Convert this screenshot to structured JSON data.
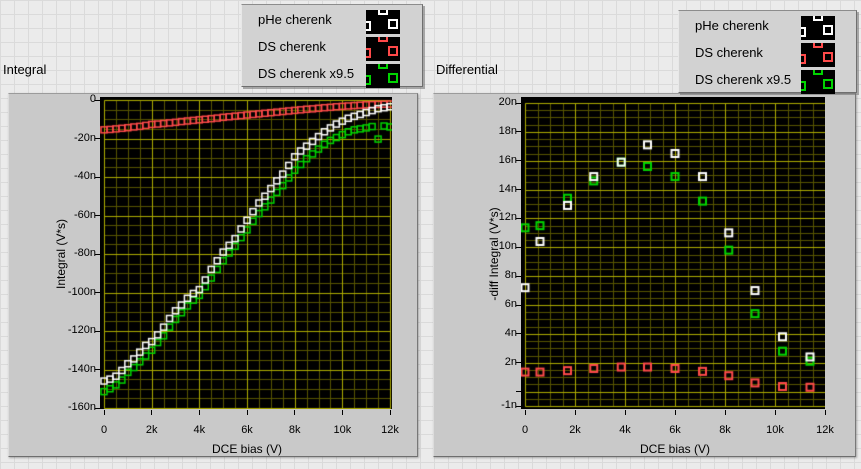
{
  "colors": {
    "page_bg": "#ebebeb",
    "page_grid": "#dadada",
    "panel_bg": "#c9c9c9",
    "plot_bg": "#000000",
    "grid_major": "#aeac00",
    "grid_minor": "#585600",
    "series_white": "#ffffff",
    "series_red": "#ff4a4a",
    "series_green": "#00d400"
  },
  "legend_items": [
    {
      "label": "pHe cherenk",
      "color": "#ffffff"
    },
    {
      "label": "DS cherenk",
      "color": "#ff4a4a"
    },
    {
      "label": "DS cherenk x9.5",
      "color": "#00d400"
    }
  ],
  "chart_data": [
    {
      "type": "scatter",
      "title": "Integral",
      "xlabel": "DCE bias (V)",
      "ylabel": "Integral (V*s)",
      "xlim": [
        0,
        12
      ],
      "ylim": [
        0,
        -160
      ],
      "x_minor_step": 0.5,
      "y_minor_step": 5,
      "x_ticks": [
        {
          "v": 0,
          "label": "0"
        },
        {
          "v": 2,
          "label": "2k"
        },
        {
          "v": 4,
          "label": "4k"
        },
        {
          "v": 6,
          "label": "6k"
        },
        {
          "v": 8,
          "label": "8k"
        },
        {
          "v": 10,
          "label": "10k"
        },
        {
          "v": 12,
          "label": "12k"
        }
      ],
      "y_ticks": [
        {
          "v": 0,
          "label": "0"
        },
        {
          "v": -20,
          "label": "-20n"
        },
        {
          "v": -40,
          "label": "-40n"
        },
        {
          "v": -60,
          "label": "-60n"
        },
        {
          "v": -80,
          "label": "-80n"
        },
        {
          "v": -100,
          "label": "-100n"
        },
        {
          "v": -120,
          "label": "-120n"
        },
        {
          "v": -140,
          "label": "-140n"
        },
        {
          "v": -160,
          "label": "-160n"
        }
      ],
      "x": [
        0,
        0.25,
        0.5,
        0.75,
        1,
        1.25,
        1.5,
        1.75,
        2,
        2.25,
        2.5,
        2.75,
        3,
        3.25,
        3.5,
        3.75,
        4,
        4.25,
        4.5,
        4.75,
        5,
        5.25,
        5.5,
        5.75,
        6,
        6.25,
        6.5,
        6.75,
        7,
        7.25,
        7.5,
        7.75,
        8,
        8.25,
        8.5,
        8.75,
        9,
        9.25,
        9.5,
        9.75,
        10,
        10.25,
        10.5,
        10.75,
        11,
        11.25,
        11.5,
        11.75,
        12
      ],
      "series": [
        {
          "name": "pHe cherenk",
          "color": "#ffffff",
          "y": [
            -146,
            -145,
            -143.5,
            -140.5,
            -137,
            -134.5,
            -131,
            -127.5,
            -125.5,
            -122,
            -118,
            -113.5,
            -109.5,
            -106.5,
            -103,
            -100.5,
            -98.5,
            -93.5,
            -88,
            -83.5,
            -79,
            -75.5,
            -72,
            -67,
            -62.5,
            -58,
            -53.5,
            -50,
            -46,
            -42,
            -38.5,
            -34,
            -29.5,
            -26.5,
            -24,
            -21.5,
            -19,
            -16.5,
            -14.5,
            -12.5,
            -11,
            -9.5,
            -8.5,
            -7.5,
            -6.5,
            -5.5,
            -4.5,
            -4,
            -3.5
          ]
        },
        {
          "name": "DS cherenk",
          "color": "#ff4a4a",
          "y": [
            -15.5,
            -15.3,
            -15,
            -14.7,
            -14.4,
            -14,
            -13.7,
            -13.2,
            -12.7,
            -12.5,
            -12.2,
            -11.9,
            -11.6,
            -11.2,
            -10.9,
            -10.6,
            -10.3,
            -10,
            -9.7,
            -9.4,
            -9,
            -8.7,
            -8.4,
            -8.1,
            -7.8,
            -7.5,
            -7.2,
            -6.9,
            -6.6,
            -6.3,
            -6,
            -5.7,
            -5.4,
            -5.1,
            -4.8,
            -4.6,
            -4.3,
            -4,
            -3.8,
            -3.5,
            -3.3,
            -3.1,
            -2.9,
            -2.7,
            -2.5,
            -2.4,
            -2.3,
            -2.2,
            -2.1
          ]
        },
        {
          "name": "DS cherenk x9.5",
          "color": "#00d400",
          "y": [
            -151.5,
            -150,
            -148,
            -145.5,
            -141.5,
            -139,
            -136,
            -133,
            -130,
            -126,
            -122.5,
            -118,
            -114,
            -110.5,
            -107,
            -104,
            -101.5,
            -97,
            -92.5,
            -88,
            -83.5,
            -79.5,
            -76,
            -71.5,
            -67.5,
            -63,
            -59,
            -55.5,
            -52,
            -48,
            -44.5,
            -40.5,
            -36.5,
            -33.5,
            -30.5,
            -28,
            -25.5,
            -23,
            -21,
            -19.5,
            -18,
            -16.5,
            -15.5,
            -15,
            -14.5,
            -13.8,
            -20.3,
            -13.5,
            -14
          ]
        }
      ]
    },
    {
      "type": "scatter",
      "title": "Differential",
      "xlabel": "DCE bias (V)",
      "ylabel": "-diff Integral (V*s)",
      "xlim": [
        0,
        12
      ],
      "ylim": [
        20,
        -1
      ],
      "x_minor_step": 0.5,
      "y_minor_step": 0.5,
      "x_ticks": [
        {
          "v": 0,
          "label": "0"
        },
        {
          "v": 2,
          "label": "2k"
        },
        {
          "v": 4,
          "label": "4k"
        },
        {
          "v": 6,
          "label": "6k"
        },
        {
          "v": 8,
          "label": "8k"
        },
        {
          "v": 10,
          "label": "10k"
        },
        {
          "v": 12,
          "label": "12k"
        }
      ],
      "y_ticks": [
        {
          "v": 20,
          "label": "20n"
        },
        {
          "v": 18,
          "label": "18n"
        },
        {
          "v": 16,
          "label": "16n"
        },
        {
          "v": 14,
          "label": "14n"
        },
        {
          "v": 12,
          "label": "12n"
        },
        {
          "v": 10,
          "label": "10n"
        },
        {
          "v": 8,
          "label": "8n"
        },
        {
          "v": 6,
          "label": "6n"
        },
        {
          "v": 4,
          "label": "4n"
        },
        {
          "v": 2,
          "label": "2n"
        },
        {
          "v": 0,
          "label": ""
        },
        {
          "v": -1,
          "label": "-1n"
        }
      ],
      "x": [
        0,
        0.6,
        1.7,
        2.75,
        3.85,
        4.9,
        6.0,
        7.1,
        8.15,
        9.2,
        10.3,
        11.4
      ],
      "series": [
        {
          "name": "pHe cherenk",
          "color": "#ffffff",
          "y": [
            7.2,
            10.4,
            12.9,
            14.9,
            15.9,
            17.1,
            16.5,
            14.9,
            11.0,
            7.0,
            3.8,
            2.4
          ]
        },
        {
          "name": "DS cherenk",
          "color": "#ff4a4a",
          "y": [
            1.35,
            1.35,
            1.45,
            1.6,
            1.7,
            1.7,
            1.6,
            1.4,
            1.1,
            0.6,
            0.35,
            0.3
          ]
        },
        {
          "name": "DS cherenk x9.5",
          "color": "#00d400",
          "y": [
            11.35,
            11.5,
            13.4,
            14.6,
            15.9,
            15.6,
            14.9,
            13.2,
            9.8,
            5.4,
            2.8,
            2.1
          ]
        }
      ]
    }
  ]
}
